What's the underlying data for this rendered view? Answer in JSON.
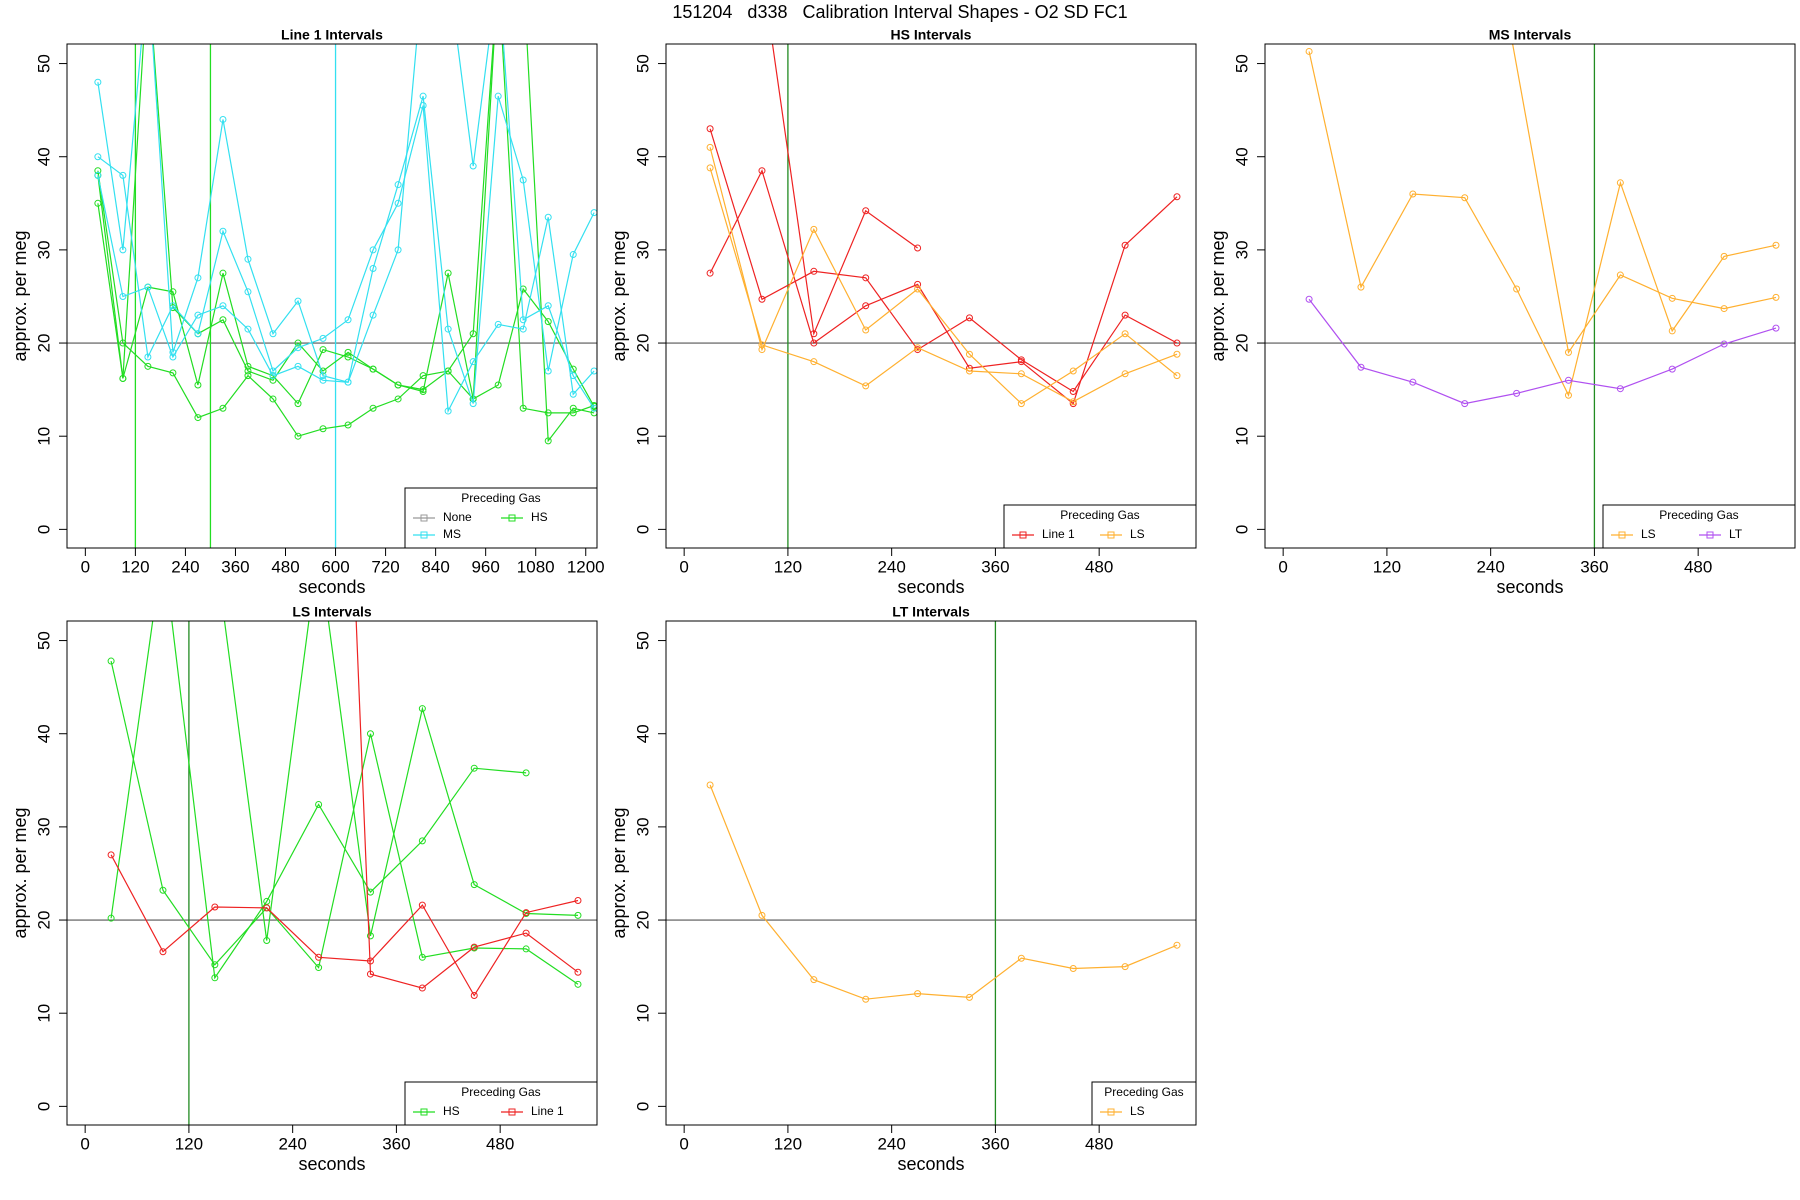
{
  "title": "151204   d338   Calibration Interval Shapes - O2 SD FC1",
  "chart_data": [
    {
      "type": "line",
      "title": "Line 1 Intervals",
      "xlabel": "seconds",
      "ylabel": "approx. per meg",
      "xlim": [
        -44,
        1227
      ],
      "ylim": [
        -2,
        52.1
      ],
      "xticks": [
        0,
        120,
        240,
        360,
        480,
        600,
        720,
        840,
        960,
        1080,
        1200
      ],
      "yticks": [
        0,
        10,
        20,
        30,
        40,
        50
      ],
      "hline": {
        "value": 20,
        "color": "#555555"
      },
      "vlines": [
        {
          "value": 120,
          "color": "#22dd22"
        },
        {
          "value": 300,
          "color": "#22dd22"
        },
        {
          "value": 600,
          "color": "#33e0f0"
        }
      ],
      "legend": {
        "title": "Preceding Gas",
        "position": "bottomright"
      },
      "series": [
        {
          "name": "None",
          "color": "#999999",
          "lines": []
        },
        {
          "name": "HS",
          "color": "#22dd22",
          "lines": [
            {
              "x": [
                30,
                90,
                150,
                210,
                270,
                330,
                390,
                450,
                510,
                570,
                630,
                690,
                750,
                810,
                870,
                930,
                990,
                1050,
                1110,
                1170,
                1220
              ],
              "values": [
                38.5,
                20,
                17.5,
                16.8,
                12,
                13,
                16.5,
                14,
                10,
                10.8,
                11.2,
                13,
                14,
                16.5,
                17,
                14,
                60,
                60,
                9.5,
                13,
                12.5
              ]
            },
            {
              "x": [
                30,
                90,
                150,
                210,
                270,
                330,
                390,
                450,
                510,
                570,
                630,
                690,
                750,
                810,
                870,
                930,
                990,
                1050,
                1110,
                1170,
                1220
              ],
              "values": [
                35,
                16.2,
                26,
                25.5,
                15.5,
                27.5,
                17.5,
                16.5,
                13.5,
                19.3,
                18.5,
                17.2,
                15.5,
                14.8,
                27.5,
                14,
                15.5,
                25.8,
                22.3,
                17.2,
                13.2
              ]
            },
            {
              "x": [
                30,
                90,
                150,
                210,
                270,
                330,
                390,
                450,
                510,
                570,
                630,
                690,
                750,
                810,
                870,
                930,
                990,
                1050,
                1110,
                1170,
                1220
              ],
              "values": [
                38,
                16.2,
                60,
                23.8,
                21,
                22.5,
                17,
                16,
                20,
                17,
                19,
                17.2,
                15.5,
                15,
                17,
                21,
                60,
                13,
                12.5,
                12.5,
                13.3
              ]
            }
          ]
        },
        {
          "name": "MS",
          "color": "#33e0f0",
          "lines": [
            {
              "x": [
                30,
                90,
                150,
                210,
                270,
                330,
                390,
                450,
                510,
                570,
                630,
                690,
                750,
                810,
                870,
                930,
                990,
                1050,
                1110,
                1170,
                1220
              ],
              "values": [
                48,
                30,
                60,
                19,
                27,
                44,
                29,
                21,
                24.5,
                16.5,
                15.8,
                28,
                37,
                46.5,
                21.5,
                13.5,
                46.5,
                37.5,
                17,
                29.5,
                34
              ]
            },
            {
              "x": [
                30,
                90,
                150,
                210,
                270,
                330,
                390,
                450,
                510,
                570,
                630,
                690,
                750,
                810,
                870,
                930,
                990,
                1050,
                1110,
                1170,
                1220
              ],
              "values": [
                40,
                38,
                18.5,
                24,
                21,
                32,
                25.5,
                17,
                19.5,
                20.5,
                22.5,
                30,
                35,
                45.5,
                12.7,
                18,
                22,
                21.5,
                33.5,
                14.5,
                17
              ]
            },
            {
              "x": [
                30,
                90,
                150,
                210,
                270,
                330,
                390,
                450,
                510,
                570,
                630,
                690,
                750,
                810,
                870,
                930,
                990,
                1050,
                1110,
                1170,
                1220
              ],
              "values": [
                38,
                25,
                26,
                18.5,
                23,
                24,
                21.5,
                16.5,
                17.5,
                16,
                15.8,
                23,
                30,
                60,
                60,
                39,
                60,
                22.5,
                24,
                16.5,
                13
              ]
            }
          ]
        }
      ]
    },
    {
      "type": "line",
      "title": "HS Intervals",
      "xlabel": "seconds",
      "ylabel": "approx. per meg",
      "xlim": [
        -21,
        592
      ],
      "ylim": [
        -2,
        52.1
      ],
      "xticks": [
        0,
        120,
        240,
        360,
        480
      ],
      "yticks": [
        0,
        10,
        20,
        30,
        40,
        50
      ],
      "hline": {
        "value": 20,
        "color": "#555555"
      },
      "vlines": [
        {
          "value": 120,
          "color": "#228b22"
        }
      ],
      "legend": {
        "title": "Preceding Gas",
        "position": "bottomright"
      },
      "series": [
        {
          "name": "Line 1",
          "color": "#ee2222",
          "lines": [
            {
              "x": [
                30,
                90,
                150,
                210,
                270,
                330,
                390,
                450,
                510,
                570
              ],
              "values": [
                27.5,
                38.5,
                20,
                24,
                26.3,
                17.3,
                18,
                13.5,
                30.5,
                35.7
              ]
            },
            {
              "x": [
                30,
                90,
                150,
                210,
                270,
                330,
                390,
                450,
                510,
                570
              ],
              "values": [
                43,
                24.7,
                27.7,
                27,
                19.3,
                22.7,
                18.2,
                14.8,
                23,
                20
              ]
            },
            {
              "x": [
                90,
                150,
                210,
                270
              ],
              "values": [
                60,
                21,
                34.2,
                30.2
              ]
            }
          ]
        },
        {
          "name": "LS",
          "color": "#ffb030",
          "lines": [
            {
              "x": [
                30,
                90,
                150,
                210,
                270,
                330,
                390,
                450,
                510,
                570
              ],
              "values": [
                41,
                19.3,
                32.2,
                21.4,
                25.8,
                18.8,
                13.5,
                17,
                21,
                16.5
              ]
            },
            {
              "x": [
                30,
                90,
                150,
                210,
                270,
                330,
                390,
                450,
                510,
                570
              ],
              "values": [
                38.8,
                19.8,
                18,
                15.4,
                19.5,
                17,
                16.7,
                13.7,
                16.7,
                18.8
              ]
            }
          ]
        }
      ]
    },
    {
      "type": "line",
      "title": "MS Intervals",
      "xlabel": "seconds",
      "ylabel": "approx. per meg",
      "xlim": [
        -21,
        592
      ],
      "ylim": [
        -2,
        52.1
      ],
      "xticks": [
        0,
        120,
        240,
        360,
        480
      ],
      "yticks": [
        0,
        10,
        20,
        30,
        40,
        50
      ],
      "hline": {
        "value": 20,
        "color": "#555555"
      },
      "vlines": [
        {
          "value": 360,
          "color": "#228b22"
        }
      ],
      "legend": {
        "title": "Preceding Gas",
        "position": "bottomright"
      },
      "series": [
        {
          "name": "LS",
          "color": "#ffb030",
          "lines": [
            {
              "x": [
                30,
                90,
                150,
                210,
                270,
                330,
                390,
                450,
                510,
                570
              ],
              "values": [
                51.3,
                26,
                36,
                35.6,
                25.8,
                14.4,
                37.2,
                21.3,
                29.3,
                30.5
              ]
            },
            {
              "x": [
                250,
                330,
                390,
                450,
                510,
                570
              ],
              "values": [
                60,
                19,
                27.3,
                24.8,
                23.7,
                24.9
              ]
            }
          ]
        },
        {
          "name": "LT",
          "color": "#b050f0",
          "lines": [
            {
              "x": [
                30,
                90,
                150,
                210,
                270,
                330,
                390,
                450,
                510,
                570
              ],
              "values": [
                24.7,
                17.4,
                15.8,
                13.5,
                14.6,
                16,
                15.1,
                17.2,
                19.9,
                21.6
              ]
            }
          ]
        }
      ]
    },
    {
      "type": "line",
      "title": "LS Intervals",
      "xlabel": "seconds",
      "ylabel": "approx. per meg",
      "xlim": [
        -21,
        592
      ],
      "ylim": [
        -2,
        52.1
      ],
      "xticks": [
        0,
        120,
        240,
        360,
        480
      ],
      "yticks": [
        0,
        10,
        20,
        30,
        40,
        50
      ],
      "hline": {
        "value": 20,
        "color": "#555555"
      },
      "vlines": [
        {
          "value": 120,
          "color": "#228b22"
        }
      ],
      "legend": {
        "title": "Preceding Gas",
        "position": "bottomright"
      },
      "series": [
        {
          "name": "HS",
          "color": "#22dd22",
          "lines": [
            {
              "x": [
                30,
                90,
                150,
                210,
                270,
                330,
                390,
                450,
                510
              ],
              "values": [
                20.2,
                60,
                13.8,
                22,
                32.4,
                23,
                28.5,
                36.3,
                35.8
              ]
            },
            {
              "x": [
                30,
                90,
                150,
                210,
                270,
                330,
                390,
                450,
                510,
                570
              ],
              "values": [
                47.8,
                23.2,
                15.2,
                21.3,
                14.9,
                40,
                16,
                17,
                16.9,
                13.1
              ]
            },
            {
              "x": [
                150,
                210,
                270,
                330,
                390,
                450,
                510,
                570
              ],
              "values": [
                60,
                17.8,
                60,
                18.3,
                42.7,
                23.8,
                20.7,
                20.5
              ]
            }
          ]
        },
        {
          "name": "Line 1",
          "color": "#ee2222",
          "lines": [
            {
              "x": [
                30,
                90,
                150,
                210,
                270,
                330,
                390,
                450,
                510,
                570
              ],
              "values": [
                27,
                16.6,
                21.4,
                21.3,
                16,
                15.6,
                21.6,
                11.9,
                20.8,
                22.1
              ]
            },
            {
              "x": [
                310,
                330,
                390,
                450,
                510,
                570
              ],
              "values": [
                60,
                14.2,
                12.7,
                17.1,
                18.6,
                14.4
              ]
            }
          ]
        }
      ]
    },
    {
      "type": "line",
      "title": "LT Intervals",
      "xlabel": "seconds",
      "ylabel": "approx. per meg",
      "xlim": [
        -21,
        592
      ],
      "ylim": [
        -2,
        52.1
      ],
      "xticks": [
        0,
        120,
        240,
        360,
        480
      ],
      "yticks": [
        0,
        10,
        20,
        30,
        40,
        50
      ],
      "hline": {
        "value": 20,
        "color": "#555555"
      },
      "vlines": [
        {
          "value": 360,
          "color": "#228b22"
        }
      ],
      "legend": {
        "title": "Preceding Gas",
        "position": "bottomright"
      },
      "series": [
        {
          "name": "LS",
          "color": "#ffb030",
          "lines": [
            {
              "x": [
                30,
                90,
                150,
                210,
                270,
                330,
                390,
                450,
                510,
                570
              ],
              "values": [
                34.5,
                20.5,
                13.6,
                11.5,
                12.1,
                11.7,
                15.9,
                14.8,
                15,
                17.3
              ]
            }
          ]
        }
      ]
    }
  ]
}
